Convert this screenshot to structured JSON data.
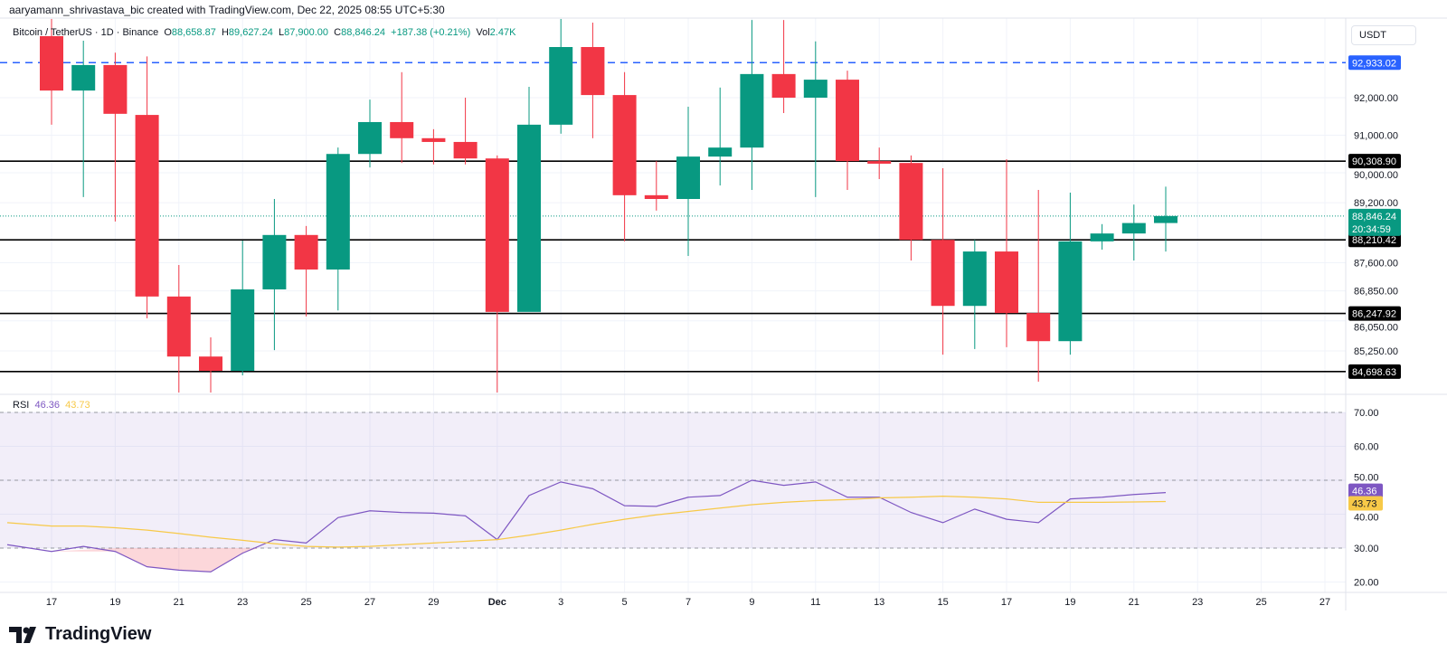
{
  "credit": "aaryamann_shrivastava_bic created with TradingView.com, Dec 22, 2025 08:55 UTC+5:30",
  "legend": {
    "symbol": "Bitcoin / TetherUS · 1D · Binance",
    "o_label": "O",
    "o": "88,658.87",
    "h_label": "H",
    "h": "89,627.24",
    "l_label": "L",
    "l": "87,900.00",
    "c_label": "C",
    "c": "88,846.24",
    "change": "+187.38 (+0.21%)",
    "vol_label": "Vol",
    "vol": "2.47K"
  },
  "rsi_legend": {
    "label": "RSI",
    "rsi": "46.36",
    "ma": "43.73"
  },
  "currency_button": "USDT",
  "logo_text": "TradingView",
  "colors": {
    "up": "#089981",
    "down": "#f23645",
    "rsi": "#7e57c2",
    "rsi_ma": "#f7c948",
    "level_line": "#000000",
    "dashed_level": "#2962ff"
  },
  "chart_data": [
    {
      "type": "candlestick",
      "title": "Bitcoin / TetherUS · 1D · Binance",
      "ylim": [
        84000,
        94300
      ],
      "y_ticks": [
        "92,000.00",
        "91,000.00",
        "90,000.00",
        "89,200.00",
        "87,600.00",
        "86,850.00",
        "86,050.00",
        "85,250.00"
      ],
      "y_tick_values": [
        92000,
        91000,
        90000,
        89200,
        87600,
        86850,
        86050,
        85250
      ],
      "x_tick_labels": [
        "17",
        "19",
        "21",
        "23",
        "25",
        "27",
        "29",
        "Dec",
        "3",
        "5",
        "7",
        "9",
        "11",
        "13",
        "15",
        "17",
        "19",
        "21",
        "23",
        "25",
        "27"
      ],
      "dates": [
        "Nov 17",
        "Nov 18",
        "Nov 19",
        "Nov 20",
        "Nov 21",
        "Nov 22",
        "Nov 23",
        "Nov 24",
        "Nov 25",
        "Nov 26",
        "Nov 27",
        "Nov 28",
        "Nov 29",
        "Nov 30",
        "Dec 1",
        "Dec 2",
        "Dec 3",
        "Dec 4",
        "Dec 5",
        "Dec 6",
        "Dec 7",
        "Dec 8",
        "Dec 9",
        "Dec 10",
        "Dec 11",
        "Dec 12",
        "Dec 13",
        "Dec 14",
        "Dec 15",
        "Dec 16",
        "Dec 17",
        "Dec 18",
        "Dec 19",
        "Dec 20",
        "Dec 21",
        "Dec 22"
      ],
      "ohlc": [
        [
          93640,
          94300,
          91280,
          92190
        ],
        [
          92190,
          93520,
          89350,
          92870
        ],
        [
          92870,
          93200,
          88700,
          91570
        ],
        [
          91540,
          93100,
          86120,
          86700
        ],
        [
          86700,
          87540,
          84140,
          85100
        ],
        [
          85100,
          85610,
          84140,
          84720
        ],
        [
          84720,
          88190,
          84600,
          86890
        ],
        [
          86890,
          89300,
          85270,
          88340
        ],
        [
          88340,
          88580,
          86170,
          87420
        ],
        [
          87420,
          90670,
          86330,
          90500
        ],
        [
          90500,
          91950,
          90140,
          91350
        ],
        [
          91350,
          92680,
          90260,
          90920
        ],
        [
          90920,
          91160,
          90220,
          90820
        ],
        [
          90820,
          92000,
          90220,
          90380
        ],
        [
          90380,
          90460,
          84140,
          86290
        ],
        [
          86290,
          92290,
          86330,
          91280
        ],
        [
          91280,
          94120,
          91040,
          93350
        ],
        [
          93350,
          94000,
          90920,
          92070
        ],
        [
          92070,
          92680,
          88170,
          89400
        ],
        [
          89400,
          90310,
          88990,
          89300
        ],
        [
          89300,
          91760,
          87780,
          90430
        ],
        [
          90430,
          92270,
          89660,
          90670
        ],
        [
          90670,
          94070,
          89540,
          92630
        ],
        [
          92630,
          94070,
          91590,
          92000
        ],
        [
          92000,
          93500,
          89350,
          92480
        ],
        [
          92480,
          92720,
          89540,
          90310
        ],
        [
          90310,
          90670,
          89830,
          90240
        ],
        [
          90260,
          90460,
          87660,
          88210
        ],
        [
          88210,
          90120,
          85150,
          86450
        ],
        [
          86450,
          88210,
          85300,
          87900
        ],
        [
          87900,
          90360,
          85350,
          86260
        ],
        [
          86260,
          89540,
          84430,
          85510
        ],
        [
          85510,
          89470,
          85150,
          88170
        ],
        [
          88170,
          88630,
          87950,
          88380
        ],
        [
          88380,
          89150,
          87660,
          88658.87
        ],
        [
          88658.87,
          89627.24,
          87900,
          88846.24
        ]
      ],
      "horizontal_lines": [
        {
          "value": 92933.02,
          "label": "92,933.02",
          "style": "dashed",
          "color": "#2962ff"
        },
        {
          "value": 90308.9,
          "label": "90,308.90",
          "style": "solid",
          "color": "#000000"
        },
        {
          "value": 88210.42,
          "label": "88,210.42",
          "style": "solid",
          "color": "#000000"
        },
        {
          "value": 86247.92,
          "label": "86,247.92",
          "style": "solid",
          "color": "#000000"
        },
        {
          "value": 84698.63,
          "label": "84,698.63",
          "style": "solid",
          "color": "#000000"
        }
      ],
      "last_price": {
        "value": 88846.24,
        "label": "88,846.24",
        "countdown": "20:34:59"
      },
      "grid": true
    },
    {
      "type": "line",
      "title": "RSI",
      "ylim": [
        18,
        75
      ],
      "y_ticks": [
        "70.00",
        "60.00",
        "50.00",
        "40.00",
        "30.00",
        "20.00"
      ],
      "y_tick_values": [
        70,
        60,
        50,
        40,
        30,
        20
      ],
      "band": [
        30,
        70
      ],
      "dates": [
        "Nov 16",
        "Nov 17",
        "Nov 18",
        "Nov 19",
        "Nov 20",
        "Nov 21",
        "Nov 22",
        "Nov 23",
        "Nov 24",
        "Nov 25",
        "Nov 26",
        "Nov 27",
        "Nov 28",
        "Nov 29",
        "Nov 30",
        "Dec 1",
        "Dec 2",
        "Dec 3",
        "Dec 4",
        "Dec 5",
        "Dec 6",
        "Dec 7",
        "Dec 8",
        "Dec 9",
        "Dec 10",
        "Dec 11",
        "Dec 12",
        "Dec 13",
        "Dec 14",
        "Dec 15",
        "Dec 16",
        "Dec 17",
        "Dec 18",
        "Dec 19",
        "Dec 20",
        "Dec 21",
        "Dec 22"
      ],
      "series": [
        {
          "name": "RSI",
          "label": "46.36",
          "values": [
            31,
            29,
            30.5,
            29,
            24.5,
            23.5,
            23,
            28.5,
            32.5,
            31.5,
            39,
            41,
            40.5,
            40.3,
            39.5,
            32.5,
            45.5,
            49.5,
            47.5,
            42.5,
            42.3,
            45,
            45.5,
            50,
            48.5,
            49.5,
            45,
            45,
            40.5,
            37.5,
            41.5,
            38.5,
            37.5,
            44.5,
            45,
            45.8,
            46.36
          ]
        },
        {
          "name": "RSI MA",
          "label": "43.73",
          "values": [
            37.5,
            36.5,
            36.5,
            36,
            35.3,
            34.3,
            33.2,
            32.3,
            31.3,
            30.5,
            30.3,
            30.5,
            31,
            31.5,
            32,
            32.5,
            33.8,
            35.3,
            37,
            38.5,
            39.8,
            40.8,
            41.8,
            42.8,
            43.5,
            44,
            44.3,
            44.8,
            45,
            45.3,
            45,
            44.5,
            43.5,
            43.5,
            43.5,
            43.6,
            43.73
          ]
        }
      ],
      "grid": true
    }
  ]
}
